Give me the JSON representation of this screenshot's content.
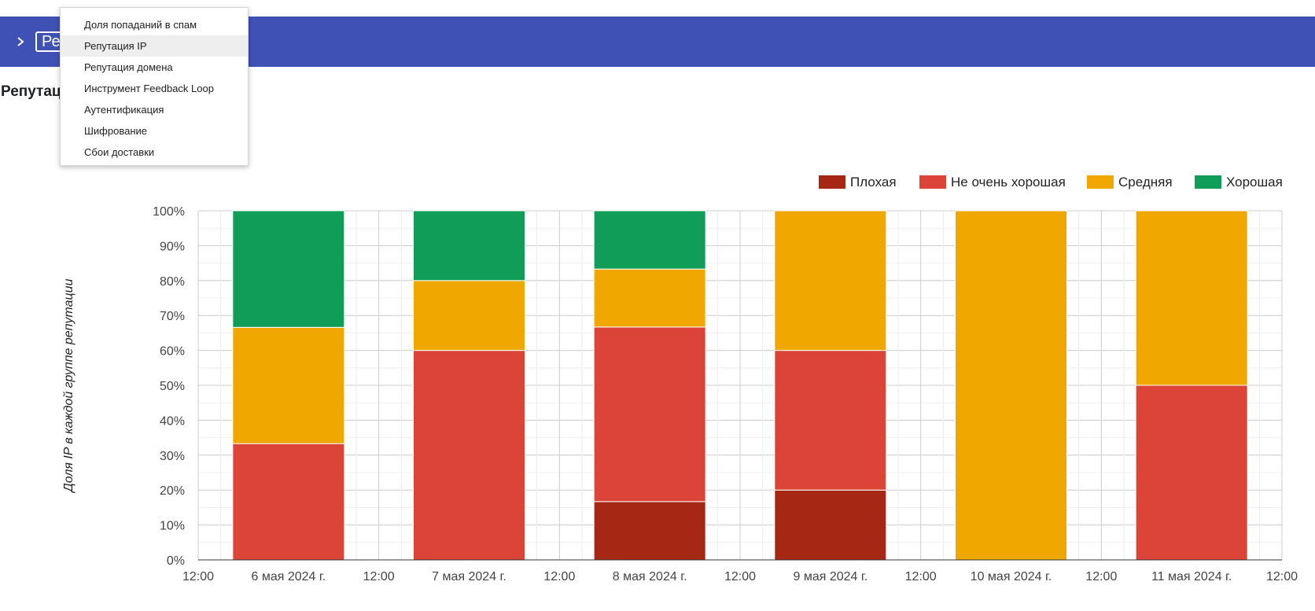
{
  "header": {
    "selector_text": "Репутация IP"
  },
  "page": {
    "title": "Репутация IP"
  },
  "dropdown_menu": {
    "items": [
      {
        "label": "Доля попаданий в спам",
        "active": false
      },
      {
        "label": "Репутация IP",
        "active": true
      },
      {
        "label": "Репутация домена",
        "active": false
      },
      {
        "label": "Инструмент Feedback Loop",
        "active": false
      },
      {
        "label": "Аутентификация",
        "active": false
      },
      {
        "label": "Шифрование",
        "active": false
      },
      {
        "label": "Сбои доставки",
        "active": false
      }
    ]
  },
  "colors": {
    "header_bg": "#3f51b5",
    "bad": "#a52714",
    "not_good": "#db4437",
    "average": "#f0a800",
    "good": "#0f9d58"
  },
  "chart_data": {
    "type": "bar",
    "stacked": true,
    "ylabel": "Доля IP в каждой группе репутации",
    "ylim": [
      0,
      100
    ],
    "y_ticks": [
      "0%",
      "10%",
      "20%",
      "30%",
      "40%",
      "50%",
      "60%",
      "70%",
      "80%",
      "90%",
      "100%"
    ],
    "x_tick_labels": [
      "12:00",
      "6 мая 2024 г.",
      "12:00",
      "7 мая 2024 г.",
      "12:00",
      "8 мая 2024 г.",
      "12:00",
      "9 мая 2024 г.",
      "12:00",
      "10 мая 2024 г.",
      "12:00",
      "11 мая 2024 г.",
      "12:00"
    ],
    "categories": [
      "6 мая 2024 г.",
      "7 мая 2024 г.",
      "8 мая 2024 г.",
      "9 мая 2024 г.",
      "10 мая 2024 г.",
      "11 мая 2024 г."
    ],
    "legend_position": "top-right",
    "grid": true,
    "series": [
      {
        "name": "Плохая",
        "color": "#a52714",
        "values": [
          0,
          0,
          16.7,
          20,
          0,
          0
        ]
      },
      {
        "name": "Не очень хорошая",
        "color": "#db4437",
        "values": [
          33.3,
          60,
          50,
          40,
          0,
          50
        ]
      },
      {
        "name": "Средняя",
        "color": "#f0a800",
        "values": [
          33.3,
          20,
          16.6,
          40,
          100,
          50
        ]
      },
      {
        "name": "Хорошая",
        "color": "#0f9d58",
        "values": [
          33.4,
          20,
          16.7,
          0,
          0,
          0
        ]
      }
    ]
  }
}
